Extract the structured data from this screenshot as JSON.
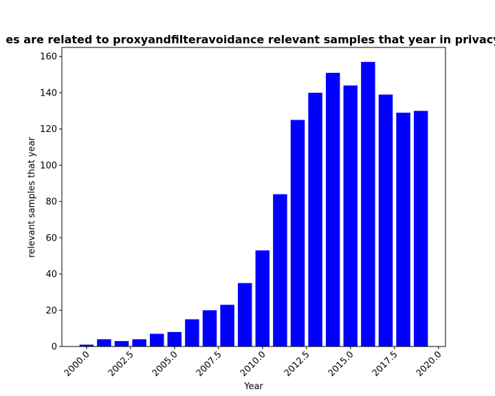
{
  "chart_data": {
    "type": "bar",
    "title": "es are related to proxyandfilteravoidance relevant samples that year in privacy",
    "xlabel": "Year",
    "ylabel": "relevant samples that year",
    "x": [
      2000,
      2001,
      2002,
      2003,
      2004,
      2005,
      2006,
      2007,
      2008,
      2009,
      2010,
      2011,
      2012,
      2013,
      2014,
      2015,
      2016,
      2017,
      2018,
      2019
    ],
    "values": [
      1,
      4,
      3,
      4,
      7,
      8,
      15,
      20,
      23,
      35,
      53,
      84,
      125,
      140,
      151,
      144,
      157,
      139,
      129,
      130
    ],
    "xlim": [
      1998.6,
      2020.4
    ],
    "ylim": [
      0,
      165
    ],
    "xticks": [
      2000.0,
      2002.5,
      2005.0,
      2007.5,
      2010.0,
      2012.5,
      2015.0,
      2017.5,
      2020.0
    ],
    "xtick_labels": [
      "2000.0",
      "2002.5",
      "2005.0",
      "2007.5",
      "2010.0",
      "2012.5",
      "2015.0",
      "2017.5",
      "2020.0"
    ],
    "yticks": [
      0,
      20,
      40,
      60,
      80,
      100,
      120,
      140,
      160
    ],
    "ytick_labels": [
      "0",
      "20",
      "40",
      "60",
      "80",
      "100",
      "120",
      "140",
      "160"
    ],
    "bar_color": "#0000ff",
    "grid": false,
    "legend": false
  }
}
